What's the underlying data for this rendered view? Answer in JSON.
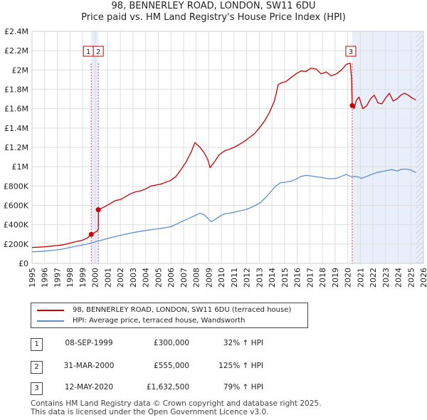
{
  "title_line1": "98, BENNERLEY ROAD, LONDON, SW11 6DU",
  "title_line2": "Price paid vs. HM Land Registry's House Price Index (HPI)",
  "chart_data": {
    "type": "line",
    "y_ticks": [
      {
        "value": 0,
        "label": "£0"
      },
      {
        "value": 200000,
        "label": "£200K"
      },
      {
        "value": 400000,
        "label": "£400K"
      },
      {
        "value": 600000,
        "label": "£600K"
      },
      {
        "value": 800000,
        "label": "£800K"
      },
      {
        "value": 1000000,
        "label": "£1M"
      },
      {
        "value": 1200000,
        "label": "£1.2M"
      },
      {
        "value": 1400000,
        "label": "£1.4M"
      },
      {
        "value": 1600000,
        "label": "£1.6M"
      },
      {
        "value": 1800000,
        "label": "£1.8M"
      },
      {
        "value": 2000000,
        "label": "£2M"
      },
      {
        "value": 2200000,
        "label": "£2.2M"
      },
      {
        "value": 2400000,
        "label": "£2.4M"
      }
    ],
    "x_ticks": [
      "1995",
      "1996",
      "1997",
      "1998",
      "1999",
      "2000",
      "2001",
      "2002",
      "2003",
      "2004",
      "2005",
      "2006",
      "2007",
      "2008",
      "2009",
      "2010",
      "2011",
      "2012",
      "2013",
      "2014",
      "2015",
      "2016",
      "2017",
      "2018",
      "2019",
      "2020",
      "2021",
      "2022",
      "2023",
      "2024",
      "2025",
      "2026"
    ],
    "xlim": [
      1995,
      2026
    ],
    "ylim": [
      0,
      2400000
    ],
    "shaded_regions": [
      [
        1999.69,
        2000.25
      ],
      [
        2020.36,
        2026
      ]
    ],
    "hatched_region": [
      2025.4,
      2026
    ],
    "series": [
      {
        "name": "98, BENNERLEY ROAD, LONDON, SW11 6DU (terraced house)",
        "color": "#cc0000",
        "x": [
          1995.0,
          1995.5,
          1996.0,
          1996.5,
          1997.0,
          1997.5,
          1998.0,
          1998.5,
          1999.0,
          1999.4,
          1999.69,
          1999.9,
          2000.1,
          2000.25,
          2000.26,
          2000.5,
          2000.8,
          2001.2,
          2001.6,
          2002.0,
          2002.4,
          2002.8,
          2003.2,
          2003.6,
          2004.0,
          2004.4,
          2004.8,
          2005.2,
          2005.6,
          2006.0,
          2006.4,
          2006.8,
          2007.2,
          2007.6,
          2007.9,
          2008.3,
          2008.6,
          2008.9,
          2009.1,
          2009.4,
          2009.8,
          2010.2,
          2010.6,
          2011.0,
          2011.4,
          2011.8,
          2012.2,
          2012.6,
          2013.0,
          2013.4,
          2013.8,
          2014.2,
          2014.5,
          2014.8,
          2015.1,
          2015.5,
          2015.9,
          2016.3,
          2016.7,
          2017.1,
          2017.5,
          2017.9,
          2018.3,
          2018.7,
          2019.1,
          2019.5,
          2019.9,
          2020.2,
          2020.3,
          2020.36,
          2020.5,
          2020.7,
          2020.9,
          2021.2,
          2021.5,
          2021.8,
          2022.1,
          2022.4,
          2022.7,
          2023.0,
          2023.3,
          2023.6,
          2023.9,
          2024.2,
          2024.5,
          2024.8,
          2025.1,
          2025.4
        ],
        "y": [
          165000,
          168000,
          172000,
          178000,
          185000,
          193000,
          210000,
          225000,
          240000,
          265000,
          300000,
          315000,
          330000,
          350000,
          555000,
          570000,
          590000,
          620000,
          650000,
          660000,
          690000,
          720000,
          740000,
          750000,
          770000,
          800000,
          810000,
          820000,
          840000,
          860000,
          900000,
          970000,
          1050000,
          1150000,
          1250000,
          1200000,
          1150000,
          1080000,
          990000,
          1040000,
          1120000,
          1160000,
          1180000,
          1200000,
          1230000,
          1260000,
          1300000,
          1340000,
          1400000,
          1470000,
          1560000,
          1680000,
          1850000,
          1870000,
          1880000,
          1920000,
          1960000,
          1990000,
          1985000,
          2020000,
          2010000,
          1960000,
          1980000,
          1940000,
          1960000,
          2000000,
          2060000,
          2070000,
          1920000,
          1632500,
          1600000,
          1690000,
          1720000,
          1600000,
          1630000,
          1700000,
          1740000,
          1660000,
          1650000,
          1710000,
          1760000,
          1680000,
          1700000,
          1740000,
          1760000,
          1740000,
          1710000,
          1690000
        ]
      },
      {
        "name": "HPI: Average price, terraced house, Wandsworth",
        "color": "#5b8fd0",
        "x": [
          1995.0,
          1995.5,
          1996.0,
          1996.5,
          1997.0,
          1997.5,
          1998.0,
          1998.5,
          1999.0,
          1999.5,
          2000.0,
          2000.5,
          2001.0,
          2001.5,
          2002.0,
          2002.5,
          2003.0,
          2003.5,
          2004.0,
          2004.5,
          2005.0,
          2005.5,
          2006.0,
          2006.5,
          2007.0,
          2007.5,
          2008.0,
          2008.3,
          2008.6,
          2008.9,
          2009.2,
          2009.5,
          2009.9,
          2010.3,
          2010.7,
          2011.1,
          2011.5,
          2011.9,
          2012.3,
          2012.7,
          2013.1,
          2013.5,
          2013.9,
          2014.3,
          2014.7,
          2015.1,
          2015.5,
          2015.9,
          2016.3,
          2016.7,
          2017.1,
          2017.5,
          2017.9,
          2018.3,
          2018.7,
          2019.1,
          2019.5,
          2019.9,
          2020.3,
          2020.7,
          2021.1,
          2021.5,
          2021.9,
          2022.3,
          2022.7,
          2023.1,
          2023.5,
          2023.9,
          2024.3,
          2024.7,
          2025.0,
          2025.4
        ],
        "y": [
          120000,
          123000,
          127000,
          133000,
          140000,
          150000,
          165000,
          178000,
          190000,
          205000,
          222000,
          240000,
          258000,
          275000,
          290000,
          305000,
          318000,
          330000,
          340000,
          350000,
          358000,
          368000,
          380000,
          410000,
          440000,
          470000,
          500000,
          520000,
          505000,
          470000,
          430000,
          455000,
          490000,
          515000,
          520000,
          530000,
          545000,
          555000,
          575000,
          600000,
          630000,
          680000,
          740000,
          800000,
          835000,
          840000,
          850000,
          870000,
          900000,
          910000,
          905000,
          895000,
          890000,
          880000,
          875000,
          880000,
          900000,
          920000,
          895000,
          900000,
          880000,
          900000,
          920000,
          940000,
          950000,
          960000,
          970000,
          955000,
          975000,
          975000,
          965000,
          940000
        ]
      }
    ],
    "markers": [
      {
        "label": "1",
        "x": 1999.69,
        "y": 300000
      },
      {
        "label": "2",
        "x": 2000.25,
        "y": 555000
      },
      {
        "label": "3",
        "x": 2020.36,
        "y": 1632500
      }
    ]
  },
  "legend": [
    {
      "label": "98, BENNERLEY ROAD, LONDON, SW11 6DU (terraced house)",
      "color": "#cc0000"
    },
    {
      "label": "HPI: Average price, terraced house, Wandsworth",
      "color": "#5b8fd0"
    }
  ],
  "transactions": [
    {
      "num": "1",
      "date": "08-SEP-1999",
      "price": "£300,000",
      "hpi": "32% ↑ HPI"
    },
    {
      "num": "2",
      "date": "31-MAR-2000",
      "price": "£555,000",
      "hpi": "125% ↑ HPI"
    },
    {
      "num": "3",
      "date": "12-MAY-2020",
      "price": "£1,632,500",
      "hpi": "79% ↑ HPI"
    }
  ],
  "footer_line1": "Contains HM Land Registry data © Crown copyright and database right 2025.",
  "footer_line2": "This data is licensed under the Open Government Licence v3.0."
}
